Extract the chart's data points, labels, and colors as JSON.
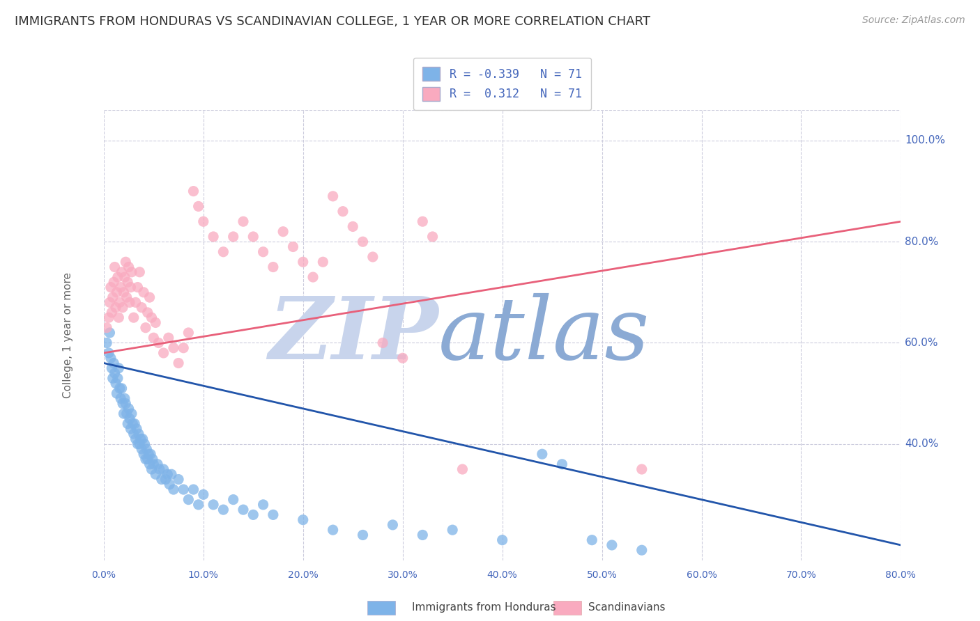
{
  "title": "IMMIGRANTS FROM HONDURAS VS SCANDINAVIAN COLLEGE, 1 YEAR OR MORE CORRELATION CHART",
  "source": "Source: ZipAtlas.com",
  "ylabel": "College, 1 year or more",
  "legend_label1": "Immigrants from Honduras",
  "legend_label2": "Scandinavians",
  "watermark_zip": "ZIP",
  "watermark_atlas": "atlas",
  "xlim": [
    0.0,
    0.8
  ],
  "ylim": [
    0.17,
    1.06
  ],
  "blue_scatter": [
    [
      0.003,
      0.6
    ],
    [
      0.005,
      0.58
    ],
    [
      0.006,
      0.62
    ],
    [
      0.007,
      0.57
    ],
    [
      0.008,
      0.55
    ],
    [
      0.009,
      0.53
    ],
    [
      0.01,
      0.56
    ],
    [
      0.011,
      0.54
    ],
    [
      0.012,
      0.52
    ],
    [
      0.013,
      0.5
    ],
    [
      0.014,
      0.53
    ],
    [
      0.015,
      0.55
    ],
    [
      0.016,
      0.51
    ],
    [
      0.017,
      0.49
    ],
    [
      0.018,
      0.51
    ],
    [
      0.019,
      0.48
    ],
    [
      0.02,
      0.46
    ],
    [
      0.021,
      0.49
    ],
    [
      0.022,
      0.48
    ],
    [
      0.023,
      0.46
    ],
    [
      0.024,
      0.44
    ],
    [
      0.025,
      0.47
    ],
    [
      0.026,
      0.45
    ],
    [
      0.027,
      0.43
    ],
    [
      0.028,
      0.46
    ],
    [
      0.029,
      0.44
    ],
    [
      0.03,
      0.42
    ],
    [
      0.031,
      0.44
    ],
    [
      0.032,
      0.41
    ],
    [
      0.033,
      0.43
    ],
    [
      0.034,
      0.4
    ],
    [
      0.035,
      0.42
    ],
    [
      0.036,
      0.4
    ],
    [
      0.037,
      0.41
    ],
    [
      0.038,
      0.39
    ],
    [
      0.039,
      0.41
    ],
    [
      0.04,
      0.38
    ],
    [
      0.041,
      0.4
    ],
    [
      0.042,
      0.37
    ],
    [
      0.043,
      0.39
    ],
    [
      0.044,
      0.37
    ],
    [
      0.045,
      0.38
    ],
    [
      0.046,
      0.36
    ],
    [
      0.047,
      0.38
    ],
    [
      0.048,
      0.35
    ],
    [
      0.049,
      0.37
    ],
    [
      0.05,
      0.36
    ],
    [
      0.052,
      0.34
    ],
    [
      0.054,
      0.36
    ],
    [
      0.056,
      0.35
    ],
    [
      0.058,
      0.33
    ],
    [
      0.06,
      0.35
    ],
    [
      0.062,
      0.33
    ],
    [
      0.064,
      0.34
    ],
    [
      0.066,
      0.32
    ],
    [
      0.068,
      0.34
    ],
    [
      0.07,
      0.31
    ],
    [
      0.075,
      0.33
    ],
    [
      0.08,
      0.31
    ],
    [
      0.085,
      0.29
    ],
    [
      0.09,
      0.31
    ],
    [
      0.095,
      0.28
    ],
    [
      0.1,
      0.3
    ],
    [
      0.11,
      0.28
    ],
    [
      0.12,
      0.27
    ],
    [
      0.13,
      0.29
    ],
    [
      0.14,
      0.27
    ],
    [
      0.15,
      0.26
    ],
    [
      0.16,
      0.28
    ],
    [
      0.17,
      0.26
    ],
    [
      0.2,
      0.25
    ],
    [
      0.23,
      0.23
    ],
    [
      0.26,
      0.22
    ],
    [
      0.29,
      0.24
    ],
    [
      0.32,
      0.22
    ],
    [
      0.35,
      0.23
    ],
    [
      0.4,
      0.21
    ],
    [
      0.44,
      0.38
    ],
    [
      0.46,
      0.36
    ],
    [
      0.49,
      0.21
    ],
    [
      0.51,
      0.2
    ],
    [
      0.54,
      0.19
    ]
  ],
  "pink_scatter": [
    [
      0.003,
      0.63
    ],
    [
      0.005,
      0.65
    ],
    [
      0.006,
      0.68
    ],
    [
      0.007,
      0.71
    ],
    [
      0.008,
      0.66
    ],
    [
      0.009,
      0.69
    ],
    [
      0.01,
      0.72
    ],
    [
      0.011,
      0.75
    ],
    [
      0.012,
      0.67
    ],
    [
      0.013,
      0.7
    ],
    [
      0.014,
      0.73
    ],
    [
      0.015,
      0.65
    ],
    [
      0.016,
      0.68
    ],
    [
      0.017,
      0.71
    ],
    [
      0.018,
      0.74
    ],
    [
      0.019,
      0.67
    ],
    [
      0.02,
      0.7
    ],
    [
      0.021,
      0.73
    ],
    [
      0.022,
      0.76
    ],
    [
      0.023,
      0.69
    ],
    [
      0.024,
      0.72
    ],
    [
      0.025,
      0.75
    ],
    [
      0.026,
      0.68
    ],
    [
      0.027,
      0.71
    ],
    [
      0.028,
      0.74
    ],
    [
      0.03,
      0.65
    ],
    [
      0.032,
      0.68
    ],
    [
      0.034,
      0.71
    ],
    [
      0.036,
      0.74
    ],
    [
      0.038,
      0.67
    ],
    [
      0.04,
      0.7
    ],
    [
      0.042,
      0.63
    ],
    [
      0.044,
      0.66
    ],
    [
      0.046,
      0.69
    ],
    [
      0.048,
      0.65
    ],
    [
      0.05,
      0.61
    ],
    [
      0.052,
      0.64
    ],
    [
      0.055,
      0.6
    ],
    [
      0.06,
      0.58
    ],
    [
      0.065,
      0.61
    ],
    [
      0.07,
      0.59
    ],
    [
      0.075,
      0.56
    ],
    [
      0.08,
      0.59
    ],
    [
      0.085,
      0.62
    ],
    [
      0.09,
      0.9
    ],
    [
      0.095,
      0.87
    ],
    [
      0.1,
      0.84
    ],
    [
      0.11,
      0.81
    ],
    [
      0.12,
      0.78
    ],
    [
      0.13,
      0.81
    ],
    [
      0.14,
      0.84
    ],
    [
      0.15,
      0.81
    ],
    [
      0.16,
      0.78
    ],
    [
      0.17,
      0.75
    ],
    [
      0.18,
      0.82
    ],
    [
      0.19,
      0.79
    ],
    [
      0.2,
      0.76
    ],
    [
      0.21,
      0.73
    ],
    [
      0.22,
      0.76
    ],
    [
      0.23,
      0.89
    ],
    [
      0.24,
      0.86
    ],
    [
      0.25,
      0.83
    ],
    [
      0.26,
      0.8
    ],
    [
      0.27,
      0.77
    ],
    [
      0.28,
      0.6
    ],
    [
      0.3,
      0.57
    ],
    [
      0.32,
      0.84
    ],
    [
      0.33,
      0.81
    ],
    [
      0.36,
      0.35
    ],
    [
      0.54,
      0.35
    ]
  ],
  "blue_line": {
    "x0": 0.0,
    "y0": 0.56,
    "x1": 0.8,
    "y1": 0.2
  },
  "pink_line": {
    "x0": 0.0,
    "y0": 0.58,
    "x1": 0.8,
    "y1": 0.84
  },
  "blue_color": "#7EB3E8",
  "pink_color": "#F9AABF",
  "blue_line_color": "#2255AA",
  "pink_line_color": "#E8607A",
  "bg_color": "#FFFFFF",
  "grid_color": "#CCCCDD",
  "axis_color": "#4466BB",
  "watermark_color_zip": "#C8D4EC",
  "watermark_color_atlas": "#8BAAD4"
}
